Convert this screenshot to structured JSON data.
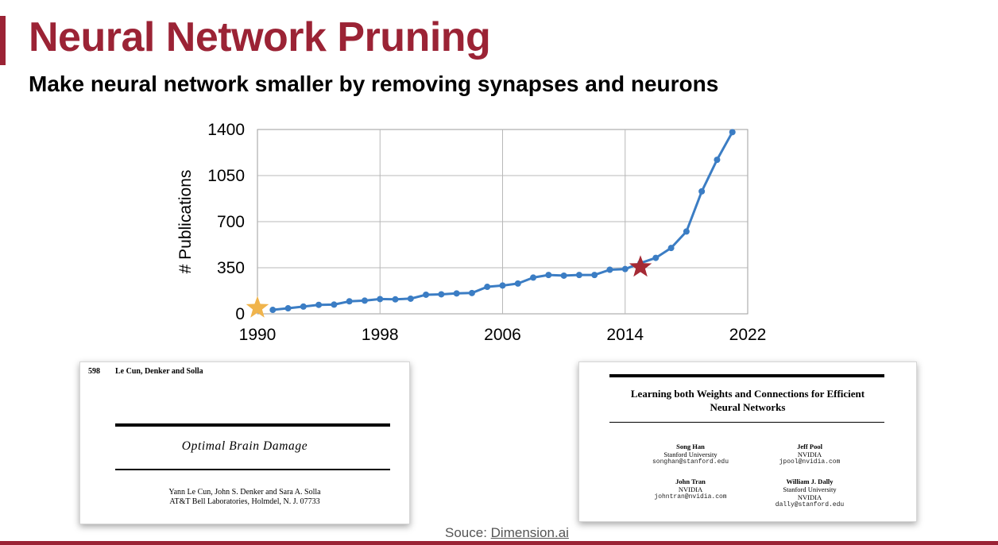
{
  "title": "Neural Network Pruning",
  "subtitle": "Make neural network smaller by removing synapses and neurons",
  "colors": {
    "accent": "#9b2335",
    "line": "#3b7dc4",
    "start_star": "#f0b44c",
    "highlight_star": "#a52a35"
  },
  "chart_data": {
    "type": "line",
    "title": "",
    "xlabel": "",
    "ylabel": "# Publications",
    "xlim": [
      1990,
      2022
    ],
    "ylim": [
      0,
      1400
    ],
    "xticks": [
      "1990",
      "1998",
      "2006",
      "2014",
      "2022"
    ],
    "yticks": [
      "0",
      "350",
      "700",
      "1050",
      "1400"
    ],
    "grid": true,
    "series": [
      {
        "x": [
          1991,
          1992,
          1993,
          1994,
          1995,
          1996,
          1997,
          1998,
          1999,
          2000,
          2001,
          2002,
          2003,
          2004,
          2005,
          2006,
          2007,
          2008,
          2009,
          2010,
          2011,
          2012,
          2013,
          2014,
          2015,
          2016,
          2017,
          2018,
          2019,
          2020,
          2021
        ],
        "values": [
          30,
          42,
          55,
          68,
          70,
          95,
          100,
          112,
          110,
          115,
          145,
          148,
          155,
          158,
          205,
          215,
          230,
          275,
          295,
          290,
          295,
          295,
          335,
          340,
          385,
          425,
          500,
          625,
          930,
          1170,
          1380
        ]
      }
    ],
    "markers": [
      {
        "name": "start-star",
        "x": 1990,
        "y": 45,
        "color": "#f0b44c"
      },
      {
        "name": "highlight-star",
        "x": 2015,
        "y": 355,
        "color": "#a52a35"
      }
    ]
  },
  "paper_left": {
    "page_number": "598",
    "running_head": "Le Cun, Denker and Solla",
    "title": "Optimal Brain Damage",
    "authors": "Yann Le Cun, John S. Denker and Sara A. Solla",
    "affiliation": "AT&T Bell Laboratories, Holmdel, N. J. 07733"
  },
  "paper_right": {
    "title_line1": "Learning both Weights and Connections for Efficient",
    "title_line2": "Neural Networks",
    "authors": [
      {
        "name": "Song Han",
        "affiliation": "Stanford University",
        "email": "songhan@stanford.edu"
      },
      {
        "name": "Jeff Pool",
        "affiliation": "NVIDIA",
        "email": "jpool@nvidia.com"
      },
      {
        "name": "John Tran",
        "affiliation": "NVIDIA",
        "email": "johntran@nvidia.com"
      },
      {
        "name": "William J. Dally",
        "affiliation": "Stanford University",
        "affiliation2": "NVIDIA",
        "email": "dally@stanford.edu"
      }
    ]
  },
  "source": {
    "prefix": "Souce: ",
    "link_text": "Dimension.ai"
  }
}
